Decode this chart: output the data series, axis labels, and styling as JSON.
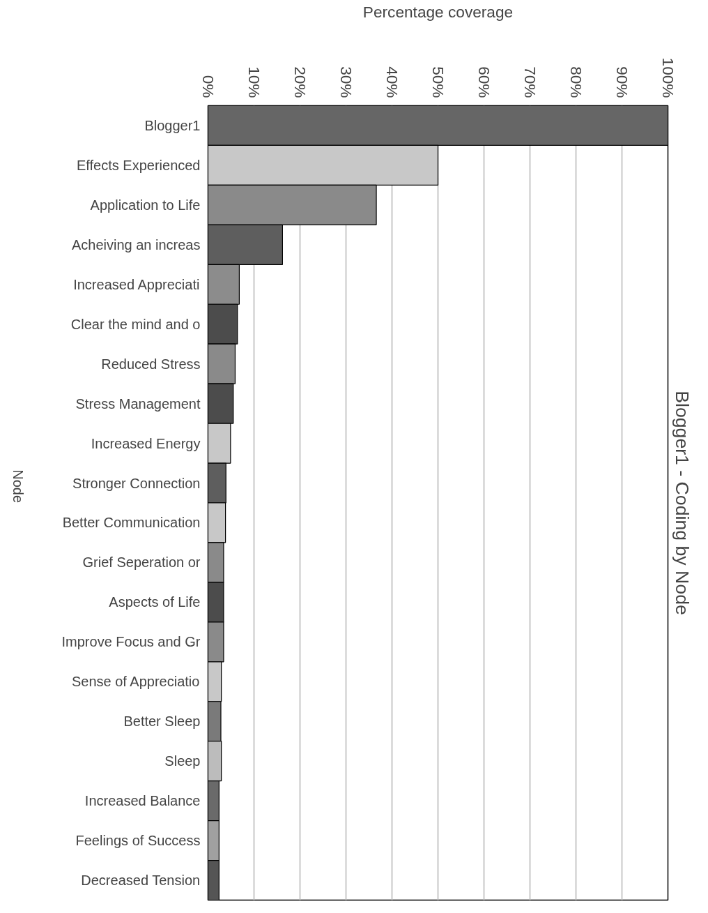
{
  "chart_data": {
    "type": "bar",
    "orientation": "horizontal",
    "title": "Blogger1 - Coding by Node",
    "xlabel": "Percentage coverage",
    "ylabel": "Node",
    "categories": [
      "Blogger1",
      "Effects Experienced",
      "Application to Life",
      "Acheiving an increas",
      "Increased Appreciati",
      "Clear the mind and o",
      "Reduced Stress",
      "Stress Management",
      "Increased Energy",
      "Stronger Connection",
      "Better Communication",
      "Grief Seperation or",
      "Aspects of Life",
      "Improve Focus and Gr",
      "Sense of Appreciatio",
      "Better Sleep",
      "Sleep",
      "Increased Balance",
      "Feelings of Success",
      "Decreased Tension"
    ],
    "values": [
      100,
      50,
      36.6,
      16.2,
      6.8,
      6.4,
      5.9,
      5.5,
      4.9,
      3.9,
      3.8,
      3.4,
      3.4,
      3.4,
      2.9,
      2.8,
      2.9,
      2.4,
      2.4,
      2.4
    ],
    "colors": [
      "#666666",
      "#c8c8c8",
      "#8a8a8a",
      "#5e5e5e",
      "#8c8c8c",
      "#4c4c4c",
      "#8a8a8a",
      "#4c4c4c",
      "#c8c8c8",
      "#5e5e5e",
      "#c8c8c8",
      "#8a8a8a",
      "#4c4c4c",
      "#8a8a8a",
      "#c8c8c8",
      "#7a7a7a",
      "#bcbcbc",
      "#6a6a6a",
      "#a0a0a0",
      "#555555"
    ],
    "xlim": [
      0,
      100
    ],
    "xticks": [
      {
        "value": 0,
        "label": "0%"
      },
      {
        "value": 10,
        "label": "10%"
      },
      {
        "value": 20,
        "label": "20%"
      },
      {
        "value": 30,
        "label": "30%"
      },
      {
        "value": 40,
        "label": "40%"
      },
      {
        "value": 50,
        "label": "50%"
      },
      {
        "value": 60,
        "label": "60%"
      },
      {
        "value": 70,
        "label": "70%"
      },
      {
        "value": 80,
        "label": "80%"
      },
      {
        "value": 90,
        "label": "90%"
      },
      {
        "value": 100,
        "label": "100%"
      }
    ],
    "grid": "x"
  }
}
